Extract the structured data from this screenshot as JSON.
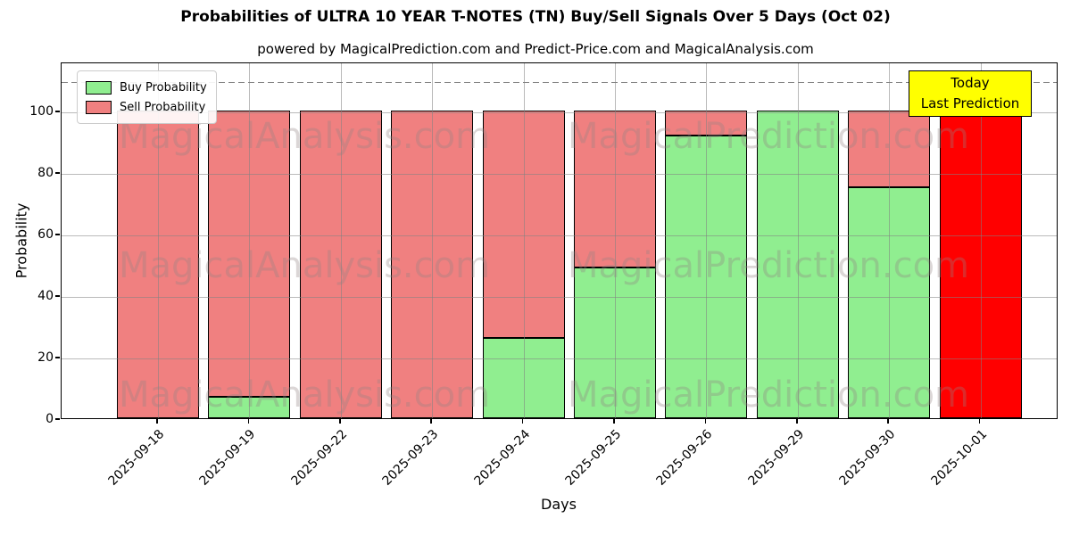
{
  "chart_data": {
    "type": "bar",
    "stacked": true,
    "title": "Probabilities of ULTRA 10 YEAR T-NOTES (TN) Buy/Sell Signals Over 5 Days (Oct 02)",
    "subtitle": "powered by MagicalPrediction.com and Predict-Price.com and MagicalAnalysis.com",
    "xlabel": "Days",
    "ylabel": "Probability",
    "categories": [
      "2025-09-18",
      "2025-09-19",
      "2025-09-22",
      "2025-09-23",
      "2025-09-24",
      "2025-09-25",
      "2025-09-26",
      "2025-09-29",
      "2025-09-30",
      "2025-10-01"
    ],
    "series": [
      {
        "name": "Buy Probability",
        "color": "#90ee90",
        "values": [
          0,
          7,
          0,
          0,
          26,
          49,
          92,
          100,
          75,
          0
        ]
      },
      {
        "name": "Sell Probability",
        "color": "#f08080",
        "values": [
          100,
          93,
          100,
          100,
          74,
          51,
          8,
          0,
          25,
          100
        ]
      }
    ],
    "today_index": 9,
    "today_color": "#ff0000",
    "bar_edge_color": "#000000",
    "ylim": [
      0,
      116
    ],
    "yticks": [
      0,
      20,
      40,
      60,
      80,
      100
    ],
    "dashed_line_y": 110,
    "grid": true,
    "legend_position": "upper-left",
    "annotation": {
      "lines": [
        "Today",
        "Last Prediction"
      ],
      "bg_color": "#ffff00"
    },
    "watermarks": {
      "left_text": "MagicalAnalysis.com",
      "right_text": "MagicalPrediction.com",
      "rows": 3
    }
  }
}
